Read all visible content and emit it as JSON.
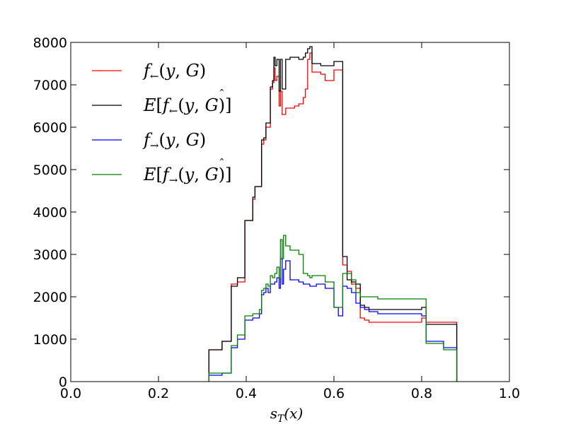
{
  "chart_data": {
    "type": "line",
    "step": true,
    "title": "",
    "xlabel": "s_T(x)",
    "xlabel_display": {
      "main": "s",
      "sub": "T",
      "rest": "(x)"
    },
    "ylabel": "",
    "xlim": [
      0.0,
      1.0
    ],
    "ylim": [
      0,
      8000
    ],
    "xticks": [
      0.0,
      0.2,
      0.4,
      0.6,
      0.8,
      1.0
    ],
    "xtick_labels": [
      "0.0",
      "0.2",
      "0.4",
      "0.6",
      "0.8",
      "1.0"
    ],
    "yticks": [
      0,
      1000,
      2000,
      3000,
      4000,
      5000,
      6000,
      7000,
      8000
    ],
    "ytick_labels": [
      "0",
      "1000",
      "2000",
      "3000",
      "4000",
      "5000",
      "6000",
      "7000",
      "8000"
    ],
    "grid": false,
    "legend_position": "top-left",
    "series": [
      {
        "name": "f←(y,G)",
        "legend": {
          "pre": "f",
          "sub": "←",
          "post": "(y, G)",
          "expect": false,
          "hat": false
        },
        "color": "#ff0000",
        "x": [
          0.315,
          0.33,
          0.345,
          0.362,
          0.366,
          0.37,
          0.38,
          0.392,
          0.397,
          0.41,
          0.415,
          0.42,
          0.435,
          0.44,
          0.445,
          0.45,
          0.455,
          0.46,
          0.463,
          0.466,
          0.47,
          0.475,
          0.478,
          0.482,
          0.49,
          0.5,
          0.51,
          0.52,
          0.53,
          0.535,
          0.54,
          0.545,
          0.55,
          0.56,
          0.565,
          0.57,
          0.58,
          0.6,
          0.61,
          0.62,
          0.63,
          0.64,
          0.65,
          0.66,
          0.67,
          0.68,
          0.7,
          0.75,
          0.78,
          0.795,
          0.8,
          0.81,
          0.85,
          0.88
        ],
        "y": [
          750,
          750,
          950,
          950,
          2300,
          2300,
          2350,
          2350,
          3800,
          3800,
          4300,
          4600,
          5600,
          5700,
          6000,
          6000,
          6900,
          7050,
          7400,
          7100,
          7200,
          6500,
          6850,
          6300,
          6450,
          6450,
          6500,
          6550,
          6700,
          6900,
          7600,
          7750,
          7300,
          7300,
          7300,
          7250,
          7100,
          7350,
          7350,
          2750,
          2600,
          2300,
          2200,
          1500,
          1450,
          1400,
          1400,
          1400,
          1400,
          1400,
          1500,
          1400,
          1400,
          1350
        ]
      },
      {
        "name": "E[f←(y,Ĝ)]",
        "legend": {
          "pre": "f",
          "sub": "←",
          "post": "(y, G)",
          "expect": true,
          "hat": true
        },
        "color": "#000000",
        "x": [
          0.315,
          0.33,
          0.345,
          0.362,
          0.366,
          0.37,
          0.38,
          0.392,
          0.397,
          0.41,
          0.415,
          0.42,
          0.435,
          0.44,
          0.445,
          0.45,
          0.455,
          0.46,
          0.463,
          0.466,
          0.47,
          0.475,
          0.478,
          0.482,
          0.49,
          0.5,
          0.52,
          0.53,
          0.535,
          0.54,
          0.545,
          0.55,
          0.56,
          0.565,
          0.57,
          0.58,
          0.6,
          0.61,
          0.62,
          0.63,
          0.64,
          0.65,
          0.66,
          0.67,
          0.68,
          0.7,
          0.75,
          0.78,
          0.795,
          0.8,
          0.81,
          0.85,
          0.88
        ],
        "y": [
          750,
          750,
          950,
          950,
          2250,
          2250,
          2450,
          2450,
          3800,
          3800,
          4350,
          4600,
          5700,
          5750,
          6100,
          6100,
          6950,
          7100,
          7650,
          7450,
          7600,
          6850,
          7600,
          6900,
          7600,
          7650,
          7600,
          7650,
          7750,
          7850,
          7900,
          7500,
          7500,
          7500,
          7450,
          7450,
          7550,
          7550,
          2950,
          2400,
          2350,
          2300,
          1800,
          1750,
          1700,
          1700,
          1700,
          1700,
          1700,
          1750,
          1350,
          1350,
          1300
        ]
      },
      {
        "name": "f→(y,G)",
        "legend": {
          "pre": "f",
          "sub": "→",
          "post": "(y, G)",
          "expect": false,
          "hat": false
        },
        "color": "#0000ff",
        "x": [
          0.315,
          0.33,
          0.345,
          0.362,
          0.366,
          0.37,
          0.38,
          0.392,
          0.397,
          0.41,
          0.415,
          0.42,
          0.43,
          0.435,
          0.44,
          0.445,
          0.45,
          0.455,
          0.46,
          0.465,
          0.47,
          0.475,
          0.478,
          0.482,
          0.485,
          0.49,
          0.5,
          0.52,
          0.53,
          0.54,
          0.545,
          0.55,
          0.56,
          0.57,
          0.58,
          0.6,
          0.61,
          0.62,
          0.63,
          0.64,
          0.65,
          0.66,
          0.67,
          0.68,
          0.7,
          0.75,
          0.78,
          0.795,
          0.8,
          0.81,
          0.85,
          0.88
        ],
        "y": [
          150,
          150,
          200,
          200,
          800,
          800,
          1000,
          1000,
          1450,
          1450,
          1500,
          1500,
          1600,
          2050,
          2100,
          2200,
          2100,
          2300,
          2300,
          2350,
          2450,
          2200,
          2900,
          2300,
          2650,
          2850,
          2400,
          2350,
          2300,
          2300,
          2250,
          2250,
          2300,
          2300,
          2200,
          1750,
          1550,
          2250,
          2200,
          2100,
          1850,
          1750,
          1700,
          1650,
          1600,
          1600,
          1600,
          1600,
          1550,
          950,
          800,
          800
        ]
      },
      {
        "name": "E[f→(y,Ĝ)]",
        "legend": {
          "pre": "f",
          "sub": "→",
          "post": "(y, G)",
          "expect": true,
          "hat": true
        },
        "color": "#008000",
        "x": [
          0.315,
          0.33,
          0.345,
          0.362,
          0.366,
          0.37,
          0.38,
          0.392,
          0.397,
          0.41,
          0.415,
          0.42,
          0.43,
          0.435,
          0.44,
          0.445,
          0.45,
          0.455,
          0.46,
          0.465,
          0.47,
          0.475,
          0.478,
          0.482,
          0.485,
          0.49,
          0.5,
          0.52,
          0.53,
          0.54,
          0.545,
          0.55,
          0.56,
          0.57,
          0.58,
          0.6,
          0.61,
          0.62,
          0.63,
          0.64,
          0.65,
          0.66,
          0.67,
          0.68,
          0.7,
          0.75,
          0.78,
          0.795,
          0.8,
          0.81,
          0.85,
          0.88
        ],
        "y": [
          200,
          200,
          200,
          200,
          850,
          850,
          1100,
          1100,
          1550,
          1550,
          1600,
          1600,
          1700,
          2150,
          2200,
          2300,
          2250,
          2500,
          2450,
          2550,
          2700,
          2450,
          3350,
          2900,
          3450,
          3200,
          3100,
          3000,
          2550,
          2500,
          2450,
          2500,
          2500,
          2500,
          2350,
          1750,
          1750,
          2550,
          2550,
          2400,
          2100,
          2000,
          2000,
          2000,
          1950,
          1950,
          1950,
          1950,
          1950,
          900,
          750,
          750
        ]
      }
    ]
  }
}
